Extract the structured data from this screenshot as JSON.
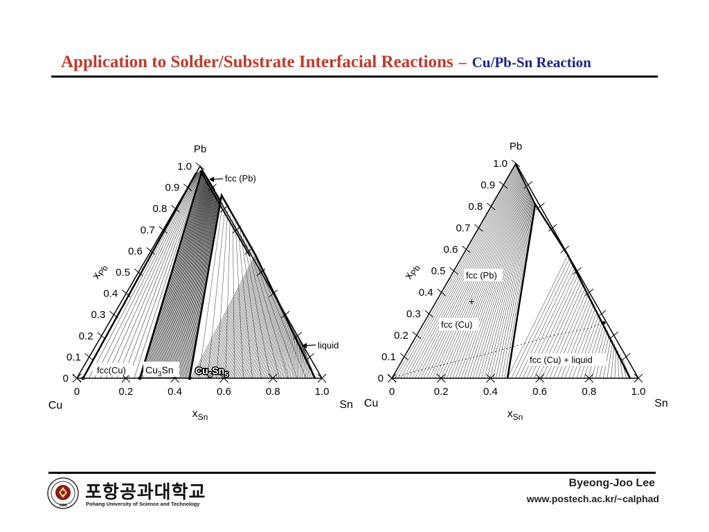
{
  "header": {
    "title": "Application to Solder/Substrate Interfacial Reactions",
    "dash": "–",
    "subtitle": "Cu/Pb-Sn Reaction"
  },
  "diagrams": [
    {
      "corner_labels": {
        "top": "Pb",
        "left": "Cu",
        "right": "Sn"
      },
      "axis_left_label": "xPb",
      "axis_bottom_label": "xSn",
      "left_ticks": [
        "1.0",
        "0.9",
        "0.8",
        "0.7",
        "0.6",
        "0.5",
        "0.4",
        "0.3",
        "0.2",
        "0.1",
        "0"
      ],
      "bottom_ticks": [
        "0",
        "0.2",
        "0.4",
        "0.6",
        "0.8",
        "1.0"
      ],
      "phase_labels": {
        "fcc_pb": "fcc (Pb)",
        "liquid": "liquid",
        "fcc_cu": "fcc(Cu)",
        "cu3sn": "Cu3Sn",
        "cu6sn5": "Cu6Sn5"
      }
    },
    {
      "corner_labels": {
        "top": "Pb",
        "left": "Cu",
        "right": "Sn"
      },
      "axis_left_label": "xPb",
      "axis_bottom_label": "xSn",
      "left_ticks": [
        "1.0",
        "0.9",
        "0.8",
        "0.7",
        "0.6",
        "0.5",
        "0.4",
        "0.3",
        "0.2",
        "0.1",
        "0"
      ],
      "bottom_ticks": [
        "0",
        "0.2",
        "0.4",
        "0.6",
        "0.8",
        "1.0"
      ],
      "phase_labels": {
        "fcc_pb": "fcc (Pb)",
        "plus": "+",
        "fcc_cu": "fcc (Cu)",
        "region": "fcc (Cu) + liquid"
      }
    }
  ],
  "footer": {
    "institution_korean": "포항공과대학교",
    "institution_english": "Pohang University of Science and Technology",
    "seal_year": "1986",
    "author": "Byeong-Joo Lee",
    "url": "www.postech.ac.kr/~calphad"
  }
}
